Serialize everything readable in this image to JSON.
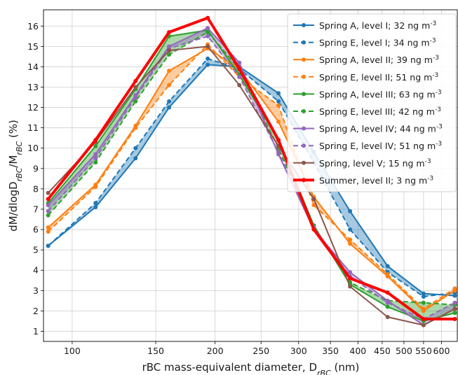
{
  "chart_data": {
    "type": "line",
    "x_scale": "log",
    "xlim": [
      87,
      650
    ],
    "ylim": [
      0.5,
      16.8
    ],
    "grid": true,
    "legend_position": "top-right",
    "xlabel": "rBC mass-equivalent diameter, D<sub>rBC</sub> (nm)",
    "ylabel": "dM/dlogD<sub>rBC</sub>/M<sub>rBC</sub> (%)",
    "x_ticks": [
      {
        "value": 100,
        "label": "100"
      },
      {
        "value": 150,
        "label": "150"
      },
      {
        "value": 200,
        "label": "200"
      },
      {
        "value": 250,
        "label": "250"
      },
      {
        "value": 300,
        "label": "300"
      },
      {
        "value": 350,
        "label": "350"
      },
      {
        "value": 400,
        "label": "400"
      },
      {
        "value": 450,
        "label": "450"
      },
      {
        "value": 500,
        "label": "500"
      },
      {
        "value": 550,
        "label": "550"
      },
      {
        "value": 600,
        "label": "600"
      }
    ],
    "y_ticks": [
      1,
      2,
      3,
      4,
      5,
      6,
      7,
      8,
      9,
      10,
      11,
      12,
      13,
      14,
      15,
      16
    ],
    "x": [
      89,
      112,
      136,
      160,
      193,
      225,
      272,
      323,
      385,
      462,
      550,
      640
    ],
    "series": [
      {
        "name": "Spring A, level I; 32 ng m<sup>-3</sup>",
        "color": "#1f77b4",
        "dash": false,
        "width": 2,
        "values": [
          5.2,
          7.1,
          9.5,
          12.0,
          14.1,
          14.0,
          12.7,
          9.8,
          6.9,
          4.2,
          2.85,
          2.75
        ]
      },
      {
        "name": "Spring E, level I; 34 ng m<sup>-3</sup>",
        "color": "#1f77b4",
        "dash": true,
        "width": 2,
        "values": [
          5.2,
          7.3,
          10.0,
          12.3,
          14.4,
          13.9,
          12.3,
          9.3,
          6.0,
          3.9,
          2.7,
          2.9
        ]
      },
      {
        "name": "Spring A, level II; 39 ng m<sup>-3</sup>",
        "color": "#ff7f0e",
        "dash": false,
        "width": 2,
        "values": [
          6.1,
          8.2,
          11.1,
          13.8,
          14.9,
          13.9,
          11.3,
          7.6,
          5.3,
          3.7,
          2.0,
          3.0
        ]
      },
      {
        "name": "Spring E, level II; 51 ng m<sup>-3</sup>",
        "color": "#ff7f0e",
        "dash": true,
        "width": 2,
        "values": [
          5.9,
          8.1,
          11.0,
          13.1,
          15.1,
          13.5,
          12.1,
          7.2,
          5.5,
          3.8,
          2.1,
          3.1
        ]
      },
      {
        "name": "Spring A, level III; 63 ng m<sup>-3</sup>",
        "color": "#2ca02c",
        "dash": false,
        "width": 2,
        "values": [
          7.3,
          10.1,
          12.9,
          15.5,
          15.8,
          13.6,
          10.4,
          6.2,
          3.3,
          2.2,
          1.5,
          1.9
        ]
      },
      {
        "name": "Spring E, level III; 42 ng m<sup>-3</sup>",
        "color": "#2ca02c",
        "dash": true,
        "width": 2,
        "values": [
          6.7,
          9.3,
          12.3,
          14.6,
          15.7,
          13.9,
          10.0,
          6.1,
          3.4,
          2.5,
          2.4,
          2.3
        ]
      },
      {
        "name": "Spring A, level IV; 44 ng m<sup>-3</sup>",
        "color": "#9467bd",
        "dash": false,
        "width": 2,
        "values": [
          7.2,
          9.7,
          12.6,
          15.0,
          15.9,
          14.2,
          9.7,
          6.0,
          3.9,
          2.5,
          1.3,
          2.1
        ]
      },
      {
        "name": "Spring E, level IV; 51 ng m<sup>-3</sup>",
        "color": "#9467bd",
        "dash": true,
        "width": 2,
        "values": [
          6.9,
          9.5,
          12.5,
          14.9,
          15.5,
          13.5,
          9.8,
          6.1,
          3.7,
          2.4,
          1.6,
          2.4
        ]
      },
      {
        "name": "Spring, level V; 15 ng m<sup>-3</sup>",
        "color": "#8c564b",
        "dash": false,
        "width": 2,
        "values": [
          7.8,
          10.3,
          13.0,
          14.8,
          15.0,
          13.1,
          10.1,
          7.5,
          3.2,
          1.7,
          1.3,
          2.1
        ]
      },
      {
        "name": "Summer, level II; 3 ng m<sup>-3</sup>",
        "color": "#ff0000",
        "dash": false,
        "width": 4,
        "values": [
          7.5,
          10.4,
          13.3,
          15.7,
          16.4,
          13.9,
          10.4,
          6.0,
          3.6,
          2.9,
          1.6,
          1.6
        ]
      }
    ],
    "shaded_pairs": [
      {
        "series": [
          0,
          1
        ],
        "color": "#1f77b4"
      },
      {
        "series": [
          2,
          3
        ],
        "color": "#ff7f0e"
      },
      {
        "series": [
          4,
          5
        ],
        "color": "#2ca02c"
      },
      {
        "series": [
          6,
          7
        ],
        "color": "#9467bd"
      }
    ]
  }
}
